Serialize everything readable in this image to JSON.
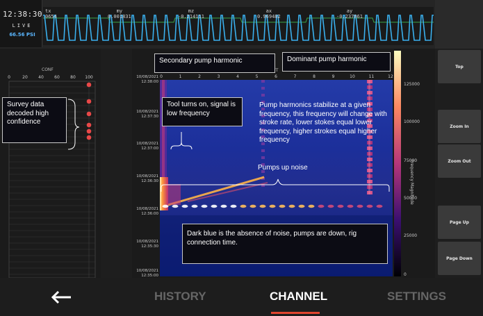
{
  "header": {
    "clock": "12:38:30",
    "live": "LIVE",
    "rate": "66.56 PSI",
    "channels": [
      {
        "name": "tx",
        "value": "0654"
      },
      {
        "name": "my",
        "value": "0.001831"
      },
      {
        "name": "mz",
        "value": "-0.214111"
      },
      {
        "name": "ax",
        "value": "0.969482"
      },
      {
        "name": "ay",
        "value": "-0.237061"
      }
    ]
  },
  "conf_panel": {
    "title": "CONF",
    "x_ticks": [
      "0",
      "20",
      "40",
      "60",
      "80",
      "100"
    ],
    "points": [
      {
        "x": 100
      },
      {
        "x": 100
      },
      {
        "x": 100
      },
      {
        "x": 100
      },
      {
        "x": 100
      },
      {
        "x": 100
      }
    ]
  },
  "spectrogram": {
    "x_title": "FFT",
    "x_ticks": [
      "0",
      "1",
      "2",
      "3",
      "4",
      "5",
      "6",
      "7",
      "8",
      "9",
      "10",
      "11",
      "12"
    ],
    "y_ticks": [
      [
        "10/08/2021",
        "12:38:00"
      ],
      [
        "10/08/2021",
        "12:37:30"
      ],
      [
        "10/08/2021",
        "12:37:00"
      ],
      [
        "10/08/2021",
        "12:36:30"
      ],
      [
        "10/08/2021",
        "12:36:00"
      ],
      [
        "10/08/2021",
        "12:35:30"
      ],
      [
        "10/08/2021",
        "12:35:00"
      ]
    ],
    "colorbar_label": "Frequency Magnitude",
    "colorbar_ticks": [
      "125000",
      "100000",
      "75000",
      "50000",
      "25000",
      "0"
    ],
    "colors": {
      "low": "#1a1f8a",
      "mid": "#c0367a",
      "high": "#fcefa0"
    }
  },
  "annotations": {
    "secondary": "Secondary pump harmonic",
    "dominant": "Dominant pump harmonic",
    "survey": "Survey data decoded high confidence",
    "tool_on": "Tool turns on, signal is low frequency",
    "stabilize": "Pump harmonics stabilize at a given frequency, this frequency will change with stroke rate, lower stokes equal lower frequency, higher strokes equal higher frequency",
    "pumps_up": "Pumps up noise",
    "dark_blue": "Dark blue is the absence of noise, pumps are down, rig connection time."
  },
  "buttons": {
    "top": "Top",
    "zoom_in": "Zoom In",
    "zoom_out": "Zoom Out",
    "page_up": "Page Up",
    "page_down": "Page Down"
  },
  "nav": {
    "back_icon": "arrow-left-icon",
    "history": "HISTORY",
    "channel": "CHANNEL",
    "settings": "SETTINGS",
    "accent": "#e0452f"
  }
}
